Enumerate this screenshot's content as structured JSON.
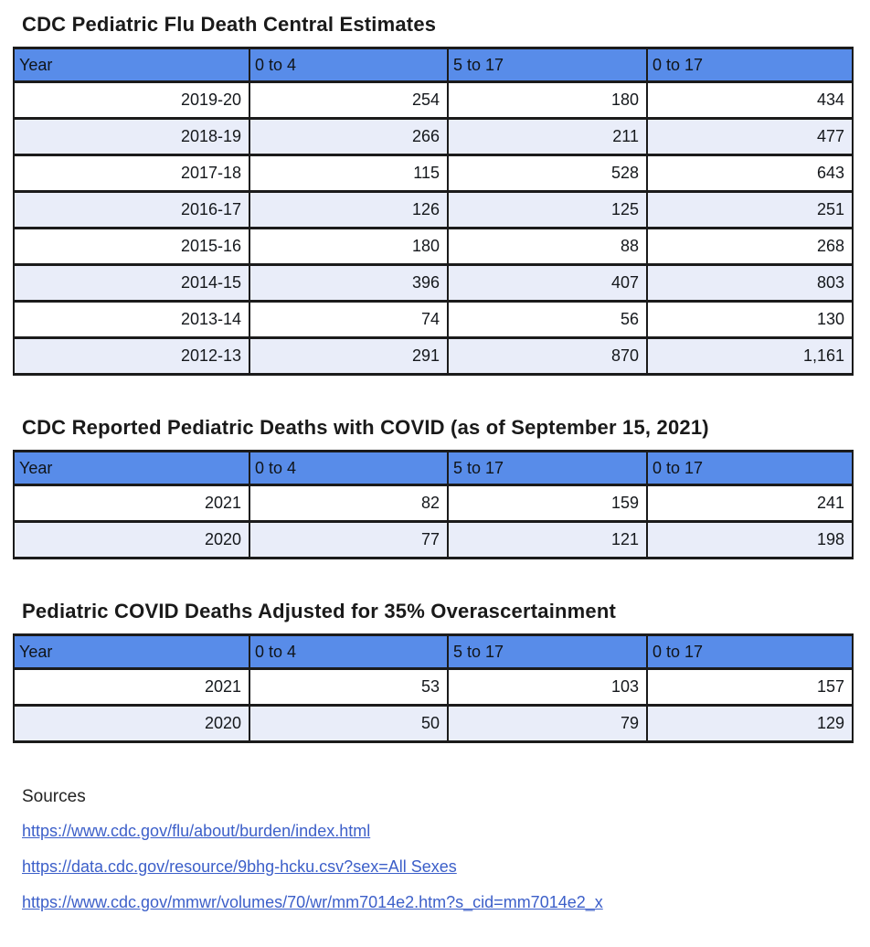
{
  "colors": {
    "header_bg": "#588ce9",
    "row_alt_bg": "#e9edf9",
    "row_bg": "#ffffff",
    "border": "#1b1b1b",
    "link": "#3c5fc9"
  },
  "tables": [
    {
      "title": "CDC Pediatric Flu Death Central Estimates",
      "columns": [
        "Year",
        "0 to 4",
        "5 to 17",
        "0 to 17"
      ],
      "rows": [
        [
          "2019-20",
          "254",
          "180",
          "434"
        ],
        [
          "2018-19",
          "266",
          "211",
          "477"
        ],
        [
          "2017-18",
          "115",
          "528",
          "643"
        ],
        [
          "2016-17",
          "126",
          "125",
          "251"
        ],
        [
          "2015-16",
          "180",
          "88",
          "268"
        ],
        [
          "2014-15",
          "396",
          "407",
          "803"
        ],
        [
          "2013-14",
          "74",
          "56",
          "130"
        ],
        [
          "2012-13",
          "291",
          "870",
          "1,161"
        ]
      ]
    },
    {
      "title": "CDC Reported Pediatric Deaths with COVID (as of September 15, 2021)",
      "columns": [
        "Year",
        "0 to 4",
        "5 to 17",
        "0 to 17"
      ],
      "rows": [
        [
          "2021",
          "82",
          "159",
          "241"
        ],
        [
          "2020",
          "77",
          "121",
          "198"
        ]
      ]
    },
    {
      "title": "Pediatric COVID Deaths Adjusted for 35% Overascertainment",
      "columns": [
        "Year",
        "0 to 4",
        "5 to 17",
        "0 to 17"
      ],
      "rows": [
        [
          "2021",
          "53",
          "103",
          "157"
        ],
        [
          "2020",
          "50",
          "79",
          "129"
        ]
      ]
    }
  ],
  "sources": {
    "heading": "Sources",
    "links": [
      "https://www.cdc.gov/flu/about/burden/index.html",
      "https://data.cdc.gov/resource/9bhg-hcku.csv?sex=All Sexes",
      "https://www.cdc.gov/mmwr/volumes/70/wr/mm7014e2.htm?s_cid=mm7014e2_x"
    ]
  }
}
